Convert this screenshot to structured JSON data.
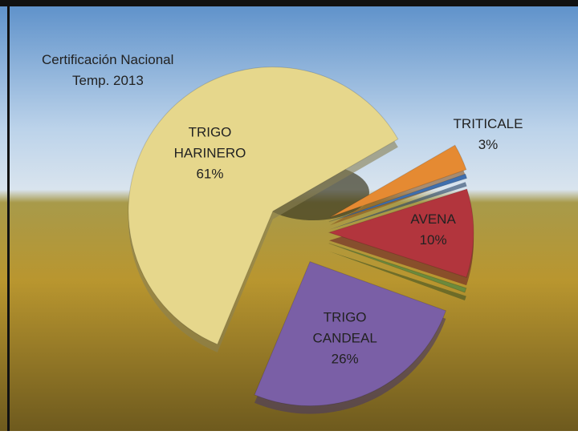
{
  "chart_data": {
    "type": "pie",
    "title_lines": [
      "Certificación Nacional",
      "Temp. 2013"
    ],
    "categories": [
      "TRITICALE",
      null,
      "AVENA",
      null,
      "TRIGO CANDEAL",
      "TRIGO HARINERO"
    ],
    "values": [
      3,
      0.5,
      10,
      0.5,
      26,
      61
    ],
    "value_labels": [
      "3%",
      null,
      "10%",
      null,
      "26%",
      "61%"
    ],
    "colors": [
      "#e58a32",
      "#3f6fae",
      "#b2353d",
      "#6b8a3c",
      "#7a5fa6",
      "#e6d78c"
    ]
  }
}
